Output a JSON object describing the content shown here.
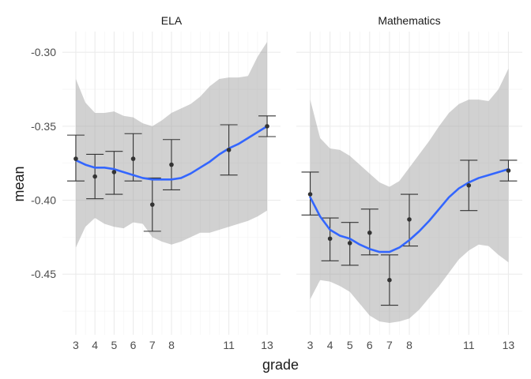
{
  "chart_data": {
    "type": "scatter",
    "xlabel": "grade",
    "ylabel": "mean",
    "x_ticks": [
      3,
      4,
      5,
      6,
      7,
      8,
      11,
      13
    ],
    "y_ticks": [
      -0.3,
      -0.35,
      -0.4,
      -0.45
    ],
    "y_tick_labels": [
      "-0.30",
      "-0.35",
      "-0.40",
      "-0.45"
    ],
    "xlim": [
      2.3,
      13.7
    ],
    "ylim": [
      -0.491,
      -0.286
    ],
    "grid": true,
    "colors": {
      "smooth": "#3366FF",
      "ribbon": "#999999",
      "point": "#333333"
    },
    "panels": [
      {
        "name": "ELA",
        "points": [
          {
            "grade": 3,
            "mean": -0.372,
            "lower": -0.387,
            "upper": -0.356
          },
          {
            "grade": 4,
            "mean": -0.384,
            "lower": -0.399,
            "upper": -0.369
          },
          {
            "grade": 5,
            "mean": -0.381,
            "lower": -0.396,
            "upper": -0.367
          },
          {
            "grade": 6,
            "mean": -0.372,
            "lower": -0.387,
            "upper": -0.355
          },
          {
            "grade": 7,
            "mean": -0.403,
            "lower": -0.421,
            "upper": -0.385
          },
          {
            "grade": 8,
            "mean": -0.376,
            "lower": -0.393,
            "upper": -0.359
          },
          {
            "grade": 11,
            "mean": -0.366,
            "lower": -0.383,
            "upper": -0.349
          },
          {
            "grade": 13,
            "mean": -0.35,
            "lower": -0.357,
            "upper": -0.343
          }
        ],
        "smooth": [
          {
            "grade": 3,
            "fit": -0.373,
            "lower": -0.432,
            "upper": -0.318
          },
          {
            "grade": 3.5,
            "fit": -0.376,
            "lower": -0.418,
            "upper": -0.334
          },
          {
            "grade": 4,
            "fit": -0.378,
            "lower": -0.412,
            "upper": -0.341
          },
          {
            "grade": 4.5,
            "fit": -0.378,
            "lower": -0.416,
            "upper": -0.341
          },
          {
            "grade": 5,
            "fit": -0.379,
            "lower": -0.418,
            "upper": -0.34
          },
          {
            "grade": 5.5,
            "fit": -0.381,
            "lower": -0.419,
            "upper": -0.343
          },
          {
            "grade": 6,
            "fit": -0.383,
            "lower": -0.415,
            "upper": -0.344
          },
          {
            "grade": 6.5,
            "fit": -0.385,
            "lower": -0.416,
            "upper": -0.348
          },
          {
            "grade": 7,
            "fit": -0.386,
            "lower": -0.425,
            "upper": -0.35
          },
          {
            "grade": 7.5,
            "fit": -0.386,
            "lower": -0.428,
            "upper": -0.346
          },
          {
            "grade": 8,
            "fit": -0.386,
            "lower": -0.43,
            "upper": -0.341
          },
          {
            "grade": 8.5,
            "fit": -0.385,
            "lower": -0.428,
            "upper": -0.338
          },
          {
            "grade": 9,
            "fit": -0.382,
            "lower": -0.425,
            "upper": -0.335
          },
          {
            "grade": 9.5,
            "fit": -0.378,
            "lower": -0.422,
            "upper": -0.33
          },
          {
            "grade": 10,
            "fit": -0.374,
            "lower": -0.422,
            "upper": -0.323
          },
          {
            "grade": 10.5,
            "fit": -0.369,
            "lower": -0.42,
            "upper": -0.318
          },
          {
            "grade": 11,
            "fit": -0.365,
            "lower": -0.418,
            "upper": -0.317
          },
          {
            "grade": 11.5,
            "fit": -0.362,
            "lower": -0.416,
            "upper": -0.317
          },
          {
            "grade": 12,
            "fit": -0.358,
            "lower": -0.414,
            "upper": -0.316
          },
          {
            "grade": 12.5,
            "fit": -0.354,
            "lower": -0.411,
            "upper": -0.303
          },
          {
            "grade": 13,
            "fit": -0.35,
            "lower": -0.407,
            "upper": -0.293
          }
        ]
      },
      {
        "name": "Mathematics",
        "points": [
          {
            "grade": 3,
            "mean": -0.396,
            "lower": -0.41,
            "upper": -0.381
          },
          {
            "grade": 4,
            "mean": -0.426,
            "lower": -0.441,
            "upper": -0.412
          },
          {
            "grade": 5,
            "mean": -0.429,
            "lower": -0.444,
            "upper": -0.415
          },
          {
            "grade": 6,
            "mean": -0.422,
            "lower": -0.437,
            "upper": -0.406
          },
          {
            "grade": 7,
            "mean": -0.454,
            "lower": -0.471,
            "upper": -0.437
          },
          {
            "grade": 8,
            "mean": -0.413,
            "lower": -0.431,
            "upper": -0.396
          },
          {
            "grade": 11,
            "mean": -0.39,
            "lower": -0.407,
            "upper": -0.373
          },
          {
            "grade": 13,
            "mean": -0.38,
            "lower": -0.387,
            "upper": -0.373
          }
        ],
        "smooth": [
          {
            "grade": 3,
            "fit": -0.398,
            "lower": -0.467,
            "upper": -0.332
          },
          {
            "grade": 3.5,
            "fit": -0.411,
            "lower": -0.454,
            "upper": -0.358
          },
          {
            "grade": 4,
            "fit": -0.42,
            "lower": -0.455,
            "upper": -0.365
          },
          {
            "grade": 4.5,
            "fit": -0.424,
            "lower": -0.458,
            "upper": -0.366
          },
          {
            "grade": 5,
            "fit": -0.426,
            "lower": -0.462,
            "upper": -0.37
          },
          {
            "grade": 5.5,
            "fit": -0.43,
            "lower": -0.47,
            "upper": -0.376
          },
          {
            "grade": 6,
            "fit": -0.433,
            "lower": -0.478,
            "upper": -0.382
          },
          {
            "grade": 6.5,
            "fit": -0.435,
            "lower": -0.482,
            "upper": -0.388
          },
          {
            "grade": 7,
            "fit": -0.435,
            "lower": -0.483,
            "upper": -0.391
          },
          {
            "grade": 7.5,
            "fit": -0.432,
            "lower": -0.482,
            "upper": -0.387
          },
          {
            "grade": 8,
            "fit": -0.427,
            "lower": -0.48,
            "upper": -0.378
          },
          {
            "grade": 8.5,
            "fit": -0.421,
            "lower": -0.474,
            "upper": -0.369
          },
          {
            "grade": 9,
            "fit": -0.414,
            "lower": -0.466,
            "upper": -0.36
          },
          {
            "grade": 9.5,
            "fit": -0.406,
            "lower": -0.458,
            "upper": -0.35
          },
          {
            "grade": 10,
            "fit": -0.398,
            "lower": -0.449,
            "upper": -0.341
          },
          {
            "grade": 10.5,
            "fit": -0.392,
            "lower": -0.44,
            "upper": -0.335
          },
          {
            "grade": 11,
            "fit": -0.388,
            "lower": -0.434,
            "upper": -0.332
          },
          {
            "grade": 11.5,
            "fit": -0.385,
            "lower": -0.43,
            "upper": -0.332
          },
          {
            "grade": 12,
            "fit": -0.383,
            "lower": -0.431,
            "upper": -0.333
          },
          {
            "grade": 12.5,
            "fit": -0.381,
            "lower": -0.437,
            "upper": -0.325
          },
          {
            "grade": 13,
            "fit": -0.379,
            "lower": -0.442,
            "upper": -0.311
          }
        ]
      }
    ]
  }
}
